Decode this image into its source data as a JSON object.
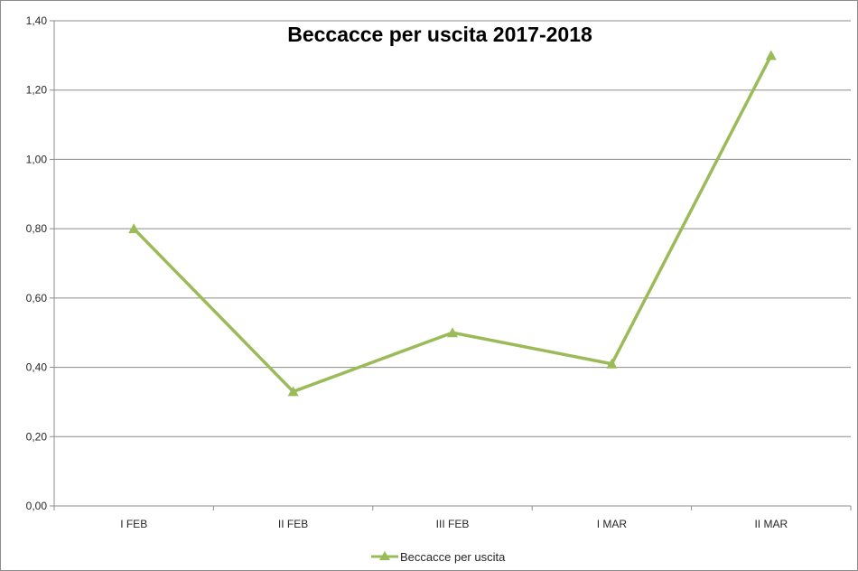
{
  "chart_data": {
    "type": "line",
    "title": "Beccacce per uscita 2017-2018",
    "xlabel": "",
    "ylabel": "",
    "categories": [
      "I FEB",
      "II FEB",
      "III FEB",
      "I MAR",
      "II MAR"
    ],
    "series": [
      {
        "name": "Beccacce per uscita",
        "values": [
          0.8,
          0.33,
          0.5,
          0.41,
          1.3
        ],
        "color": "#9bbb59",
        "marker": "triangle"
      }
    ],
    "ylim": [
      0,
      1.4
    ],
    "yticks": [
      "0,00",
      "0,20",
      "0,40",
      "0,60",
      "0,80",
      "1,00",
      "1,20",
      "1,40"
    ],
    "grid": true,
    "legend_position": "bottom"
  }
}
